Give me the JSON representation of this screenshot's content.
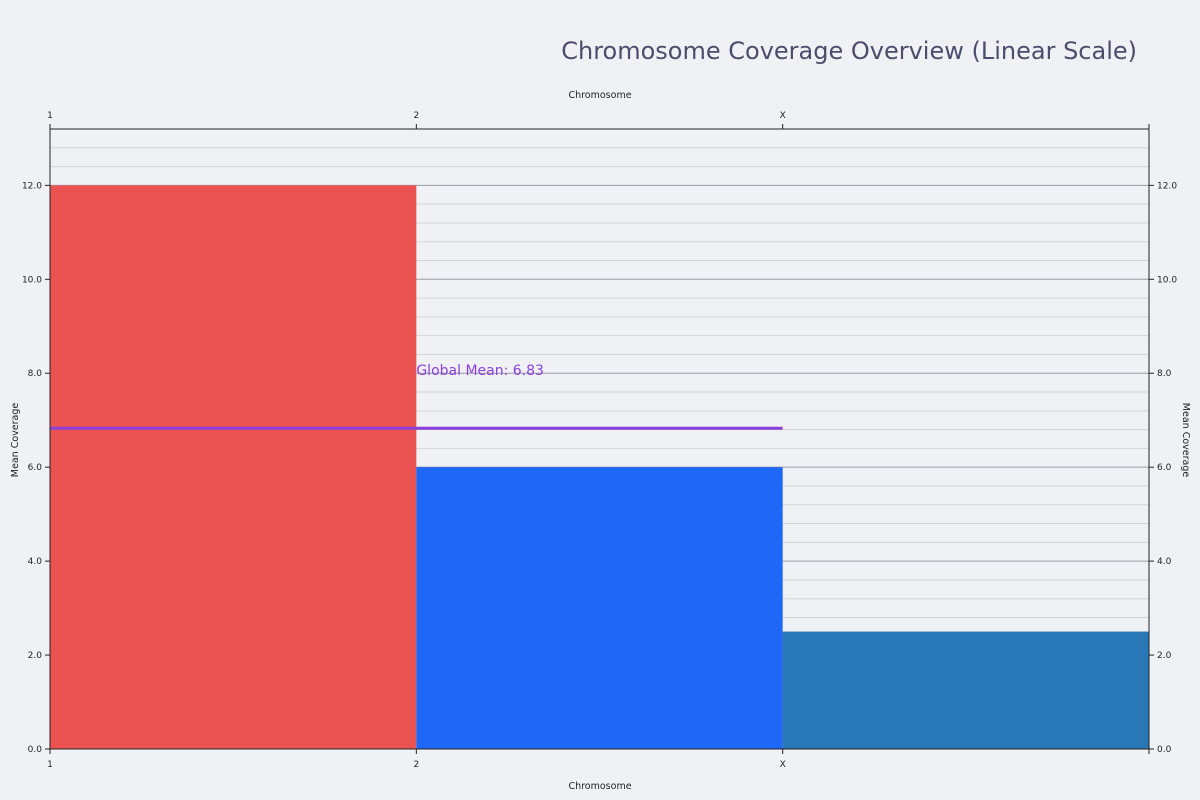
{
  "chart_data": {
    "type": "bar",
    "title": "Chromosome Coverage Overview (Linear Scale)",
    "xlabel": "Chromosome",
    "ylabel": "Mean Coverage",
    "categories": [
      "1",
      "2",
      "X"
    ],
    "values": [
      12.0,
      6.0,
      2.5
    ],
    "bar_colors": [
      "#eb5252",
      "#1f67f6",
      "#2877b6"
    ],
    "ylim": [
      0,
      13.2
    ],
    "yticks": [
      0,
      2,
      4,
      6,
      8,
      10,
      12
    ],
    "ytick_labels": [
      "0.0",
      "2.0",
      "4.0",
      "6.0",
      "8.0",
      "10.0",
      "12.0"
    ],
    "grid": true,
    "mean_line": {
      "value": 6.83,
      "label": "Global Mean: 6.83",
      "color": "#8a3fd9",
      "from_category": "1",
      "to_category": "X"
    },
    "axes_mirrored": true
  }
}
